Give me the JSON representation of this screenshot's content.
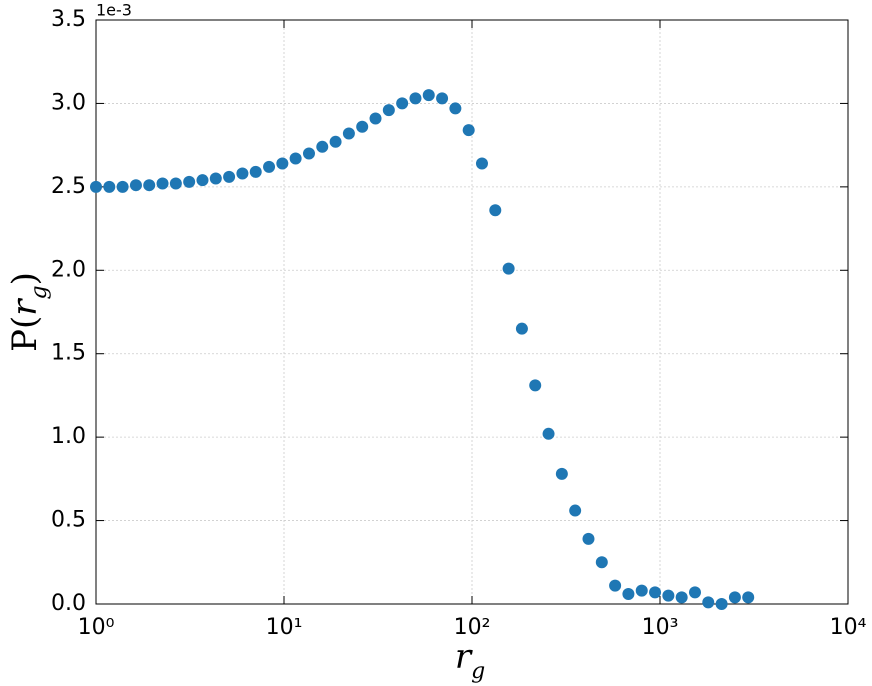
{
  "chart_data": {
    "type": "scatter",
    "offset_text": "1e-3",
    "xlabel": [
      "r",
      "g"
    ],
    "ylabel": [
      "P(",
      "r",
      "g",
      ")"
    ],
    "xscale": "log",
    "grid": true,
    "color": "#1f77b4",
    "xlim": [
      1,
      10000
    ],
    "ylim": [
      0,
      3.5
    ],
    "xticks": [
      {
        "value": 1,
        "label": "10⁰"
      },
      {
        "value": 10,
        "label": "10¹"
      },
      {
        "value": 100,
        "label": "10²"
      },
      {
        "value": 1000,
        "label": "10³"
      },
      {
        "value": 10000,
        "label": "10⁴"
      }
    ],
    "yticks": [
      {
        "value": 0,
        "label": "0.0"
      },
      0.5,
      {
        "value": 1,
        "label": "1.0"
      },
      1.5,
      {
        "value": 2,
        "label": "2.0"
      },
      2.5,
      {
        "value": 3,
        "label": "3.0"
      },
      3.5
    ],
    "x": [
      1,
      1.177,
      1.385,
      1.631,
      1.919,
      2.259,
      2.659,
      3.13,
      3.685,
      4.337,
      5.105,
      6.009,
      7.073,
      8.326,
      9.8,
      11.53,
      13.58,
      15.98,
      18.81,
      22.14,
      26.06,
      30.68,
      36.11,
      42.51,
      50.04,
      58.88,
      69.31,
      81.58,
      96.03,
      113,
      133,
      156.6,
      184.3,
      216.9,
      255.4,
      300.6,
      353.8,
      416.5,
      490.3,
      577.1,
      679.2,
      799.5,
      941.1,
      1108,
      1304,
      1535,
      1806,
      2127,
      2503,
      2946
    ],
    "values": [
      2.5,
      2.5,
      2.5,
      2.51,
      2.51,
      2.52,
      2.52,
      2.53,
      2.54,
      2.55,
      2.56,
      2.58,
      2.59,
      2.62,
      2.64,
      2.67,
      2.7,
      2.74,
      2.77,
      2.82,
      2.86,
      2.91,
      2.96,
      3.0,
      3.03,
      3.05,
      3.03,
      2.97,
      2.84,
      2.64,
      2.36,
      2.01,
      1.65,
      1.31,
      1.02,
      0.78,
      0.56,
      0.39,
      0.25,
      0.11,
      0.06,
      0.08,
      0.07,
      0.05,
      0.04,
      0.07,
      0.01,
      0.0,
      0.04,
      0.04
    ]
  }
}
